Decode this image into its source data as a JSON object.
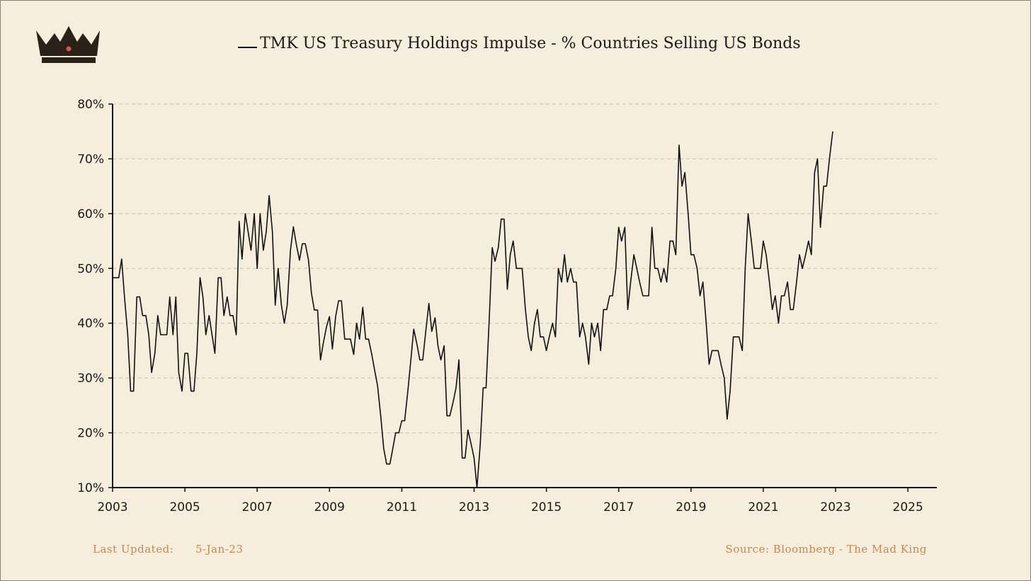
{
  "logo": {
    "icon": "crown-icon"
  },
  "chart_data": {
    "type": "line",
    "title": "TMK US Treasury Holdings Impulse - % Countries Selling US Bonds",
    "xlabel": "",
    "ylabel": "",
    "xlim": [
      2003,
      2025.8
    ],
    "ylim": [
      10,
      80
    ],
    "x_ticks": [
      "2003",
      "2005",
      "2007",
      "2009",
      "2011",
      "2013",
      "2015",
      "2017",
      "2019",
      "2021",
      "2023",
      "2025"
    ],
    "y_ticks": [
      "10%",
      "20%",
      "30%",
      "40%",
      "50%",
      "60%",
      "70%",
      "80%"
    ],
    "grid": "horizontal-dashed",
    "series": [
      {
        "name": "TMK US Treasury Holdings Impulse - % Countries Selling US Bonds",
        "color": "#111111",
        "x": [
          2003.0,
          2003.08,
          2003.17,
          2003.25,
          2003.33,
          2003.42,
          2003.5,
          2003.58,
          2003.67,
          2003.75,
          2003.83,
          2003.92,
          2004.0,
          2004.08,
          2004.17,
          2004.25,
          2004.33,
          2004.42,
          2004.5,
          2004.58,
          2004.67,
          2004.75,
          2004.83,
          2004.92,
          2005.0,
          2005.08,
          2005.17,
          2005.25,
          2005.33,
          2005.42,
          2005.5,
          2005.58,
          2005.67,
          2005.75,
          2005.83,
          2005.92,
          2006.0,
          2006.08,
          2006.17,
          2006.25,
          2006.33,
          2006.42,
          2006.5,
          2006.58,
          2006.67,
          2006.75,
          2006.83,
          2006.92,
          2007.0,
          2007.08,
          2007.17,
          2007.25,
          2007.33,
          2007.42,
          2007.5,
          2007.58,
          2007.67,
          2007.75,
          2007.83,
          2007.92,
          2008.0,
          2008.08,
          2008.17,
          2008.25,
          2008.33,
          2008.42,
          2008.5,
          2008.58,
          2008.67,
          2008.75,
          2008.83,
          2008.92,
          2009.0,
          2009.08,
          2009.17,
          2009.25,
          2009.33,
          2009.42,
          2009.5,
          2009.58,
          2009.67,
          2009.75,
          2009.83,
          2009.92,
          2010.0,
          2010.08,
          2010.17,
          2010.25,
          2010.33,
          2010.42,
          2010.5,
          2010.58,
          2010.67,
          2010.75,
          2010.83,
          2010.92,
          2011.0,
          2011.08,
          2011.17,
          2011.25,
          2011.33,
          2011.42,
          2011.5,
          2011.58,
          2011.67,
          2011.75,
          2011.83,
          2011.92,
          2012.0,
          2012.08,
          2012.17,
          2012.25,
          2012.33,
          2012.42,
          2012.5,
          2012.58,
          2012.67,
          2012.75,
          2012.83,
          2012.92,
          2013.0,
          2013.08,
          2013.17,
          2013.25,
          2013.33,
          2013.42,
          2013.5,
          2013.58,
          2013.67,
          2013.75,
          2013.83,
          2013.92,
          2014.0,
          2014.08,
          2014.17,
          2014.25,
          2014.33,
          2014.42,
          2014.5,
          2014.58,
          2014.67,
          2014.75,
          2014.83,
          2014.92,
          2015.0,
          2015.08,
          2015.17,
          2015.25,
          2015.33,
          2015.42,
          2015.5,
          2015.58,
          2015.67,
          2015.75,
          2015.83,
          2015.92,
          2016.0,
          2016.08,
          2016.17,
          2016.25,
          2016.33,
          2016.42,
          2016.5,
          2016.58,
          2016.67,
          2016.75,
          2016.83,
          2016.92,
          2017.0,
          2017.08,
          2017.17,
          2017.25,
          2017.33,
          2017.42,
          2017.5,
          2017.58,
          2017.67,
          2017.75,
          2017.83,
          2017.92,
          2018.0,
          2018.08,
          2018.17,
          2018.25,
          2018.33,
          2018.42,
          2018.5,
          2018.58,
          2018.67,
          2018.75,
          2018.83,
          2018.92,
          2019.0,
          2019.08,
          2019.17,
          2019.25,
          2019.33,
          2019.42,
          2019.5,
          2019.58,
          2019.67,
          2019.75,
          2019.83,
          2019.92,
          2020.0,
          2020.08,
          2020.17,
          2020.25,
          2020.33,
          2020.42,
          2020.5,
          2020.58,
          2020.67,
          2020.75,
          2020.83,
          2020.92,
          2021.0,
          2021.08,
          2021.17,
          2021.25,
          2021.33,
          2021.42,
          2021.5,
          2021.58,
          2021.67,
          2021.75,
          2021.83,
          2021.92,
          2022.0,
          2022.08,
          2022.17,
          2022.25,
          2022.33,
          2022.42,
          2022.5,
          2022.58,
          2022.67,
          2022.75,
          2022.83,
          2022.92
        ],
        "values": [
          48.3,
          48.3,
          48.3,
          51.7,
          44.8,
          37.9,
          27.6,
          27.6,
          44.8,
          44.8,
          41.4,
          41.4,
          37.9,
          31.0,
          34.5,
          41.4,
          37.9,
          37.9,
          37.9,
          44.8,
          37.9,
          44.8,
          31.0,
          27.6,
          34.5,
          34.5,
          27.6,
          27.6,
          34.5,
          48.3,
          44.8,
          37.9,
          41.4,
          37.9,
          34.5,
          48.3,
          48.3,
          41.4,
          44.8,
          41.4,
          41.4,
          37.9,
          58.6,
          51.7,
          60.0,
          56.7,
          53.3,
          60.0,
          50.0,
          60.0,
          53.3,
          56.7,
          63.3,
          56.7,
          43.3,
          50.0,
          43.3,
          40.0,
          43.3,
          53.3,
          57.6,
          54.5,
          51.5,
          54.5,
          54.5,
          51.5,
          45.5,
          42.4,
          42.4,
          33.3,
          36.4,
          39.4,
          41.2,
          35.3,
          41.2,
          44.1,
          44.1,
          37.1,
          37.1,
          37.1,
          34.3,
          40.0,
          37.1,
          42.9,
          37.1,
          37.1,
          34.3,
          31.4,
          28.6,
          22.9,
          17.1,
          14.3,
          14.3,
          17.1,
          20.0,
          20.0,
          22.2,
          22.2,
          27.8,
          33.3,
          38.9,
          36.1,
          33.3,
          33.3,
          38.9,
          43.6,
          38.5,
          41.0,
          35.9,
          33.3,
          35.9,
          23.1,
          23.1,
          25.6,
          28.2,
          33.3,
          15.4,
          15.4,
          20.5,
          17.9,
          15.4,
          10.0,
          17.9,
          28.2,
          28.2,
          41.0,
          53.8,
          51.3,
          53.8,
          59.0,
          59.0,
          46.2,
          52.5,
          55.0,
          50.0,
          50.0,
          50.0,
          42.5,
          37.5,
          35.0,
          40.0,
          42.5,
          37.5,
          37.5,
          35.0,
          37.5,
          40.0,
          37.5,
          50.0,
          47.5,
          52.5,
          47.5,
          50.0,
          47.5,
          47.5,
          37.5,
          40.0,
          37.5,
          32.5,
          40.0,
          37.5,
          40.0,
          35.0,
          42.5,
          42.5,
          45.0,
          45.0,
          50.0,
          57.5,
          55.0,
          57.5,
          42.5,
          47.5,
          52.5,
          50.0,
          47.5,
          45.0,
          45.0,
          45.0,
          57.5,
          50.0,
          50.0,
          47.5,
          50.0,
          47.5,
          55.0,
          55.0,
          52.5,
          72.5,
          65.0,
          67.5,
          60.0,
          52.5,
          52.5,
          50.0,
          45.0,
          47.5,
          40.0,
          32.5,
          35.0,
          35.0,
          35.0,
          32.5,
          30.0,
          22.5,
          27.5,
          37.5,
          37.5,
          37.5,
          35.0,
          50.0,
          60.0,
          55.0,
          50.0,
          50.0,
          50.0,
          55.0,
          52.5,
          47.5,
          42.5,
          45.0,
          40.0,
          45.0,
          45.0,
          47.5,
          42.5,
          42.5,
          47.5,
          52.5,
          50.0,
          52.5,
          55.0,
          52.5,
          67.5,
          70.0,
          57.5,
          65.0,
          65.0,
          70.0,
          75.0
        ]
      }
    ]
  },
  "footer": {
    "last_updated_label": "Last Updated:",
    "last_updated_value": "5-Jan-23",
    "source": "Source: Bloomberg - The Mad King"
  }
}
